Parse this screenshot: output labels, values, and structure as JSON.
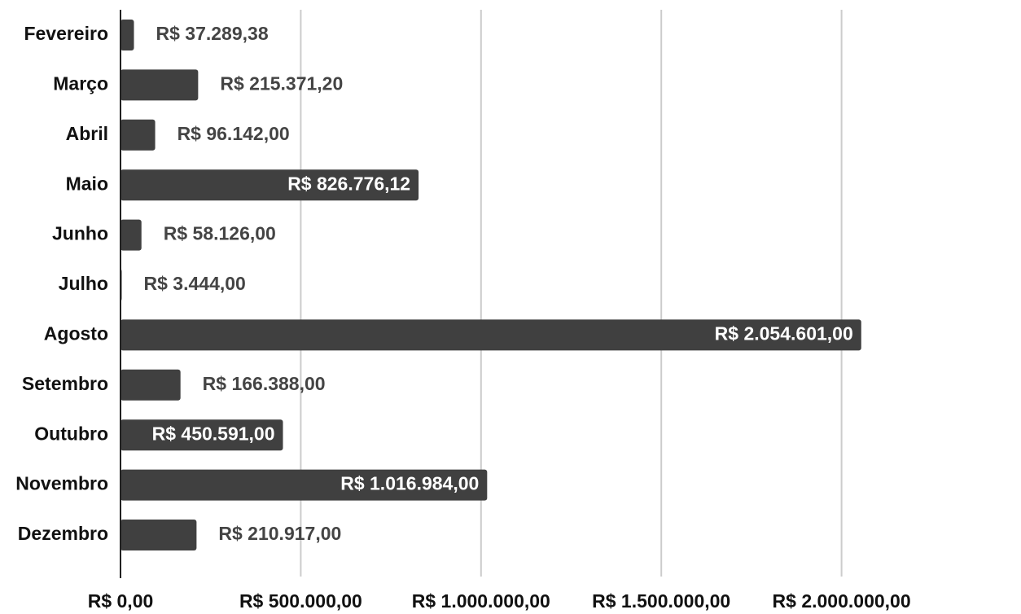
{
  "chart_data": {
    "type": "bar",
    "orientation": "horizontal",
    "categories": [
      "Fevereiro",
      "Março",
      "Abril",
      "Maio",
      "Junho",
      "Julho",
      "Agosto",
      "Setembro",
      "Outubro",
      "Novembro",
      "Dezembro"
    ],
    "values": [
      37289.38,
      215371.2,
      96142.0,
      826776.12,
      58126.0,
      3444.0,
      2054601.0,
      166388.0,
      450591.0,
      1016984.0,
      210917.0
    ],
    "value_labels": [
      "R$ 37.289,38",
      "R$ 215.371,20",
      "R$ 96.142,00",
      "R$ 826.776,12",
      "R$ 58.126,00",
      "R$ 3.444,00",
      "R$ 2.054.601,00",
      "R$ 166.388,00",
      "R$ 450.591,00",
      "R$ 1.016.984,00",
      "R$ 210.917,00"
    ],
    "color": "#404040",
    "xlim": [
      0,
      2500000
    ],
    "xticks": [
      {
        "value": 0,
        "label": "R$ 0,00"
      },
      {
        "value": 500000,
        "label": "R$ 500.000,00"
      },
      {
        "value": 1000000,
        "label": "R$ 1.000.000,00"
      },
      {
        "value": 1500000,
        "label": "R$ 1.500.000,00"
      },
      {
        "value": 2000000,
        "label": "R$ 2.000.000,00"
      }
    ],
    "grid": true
  }
}
